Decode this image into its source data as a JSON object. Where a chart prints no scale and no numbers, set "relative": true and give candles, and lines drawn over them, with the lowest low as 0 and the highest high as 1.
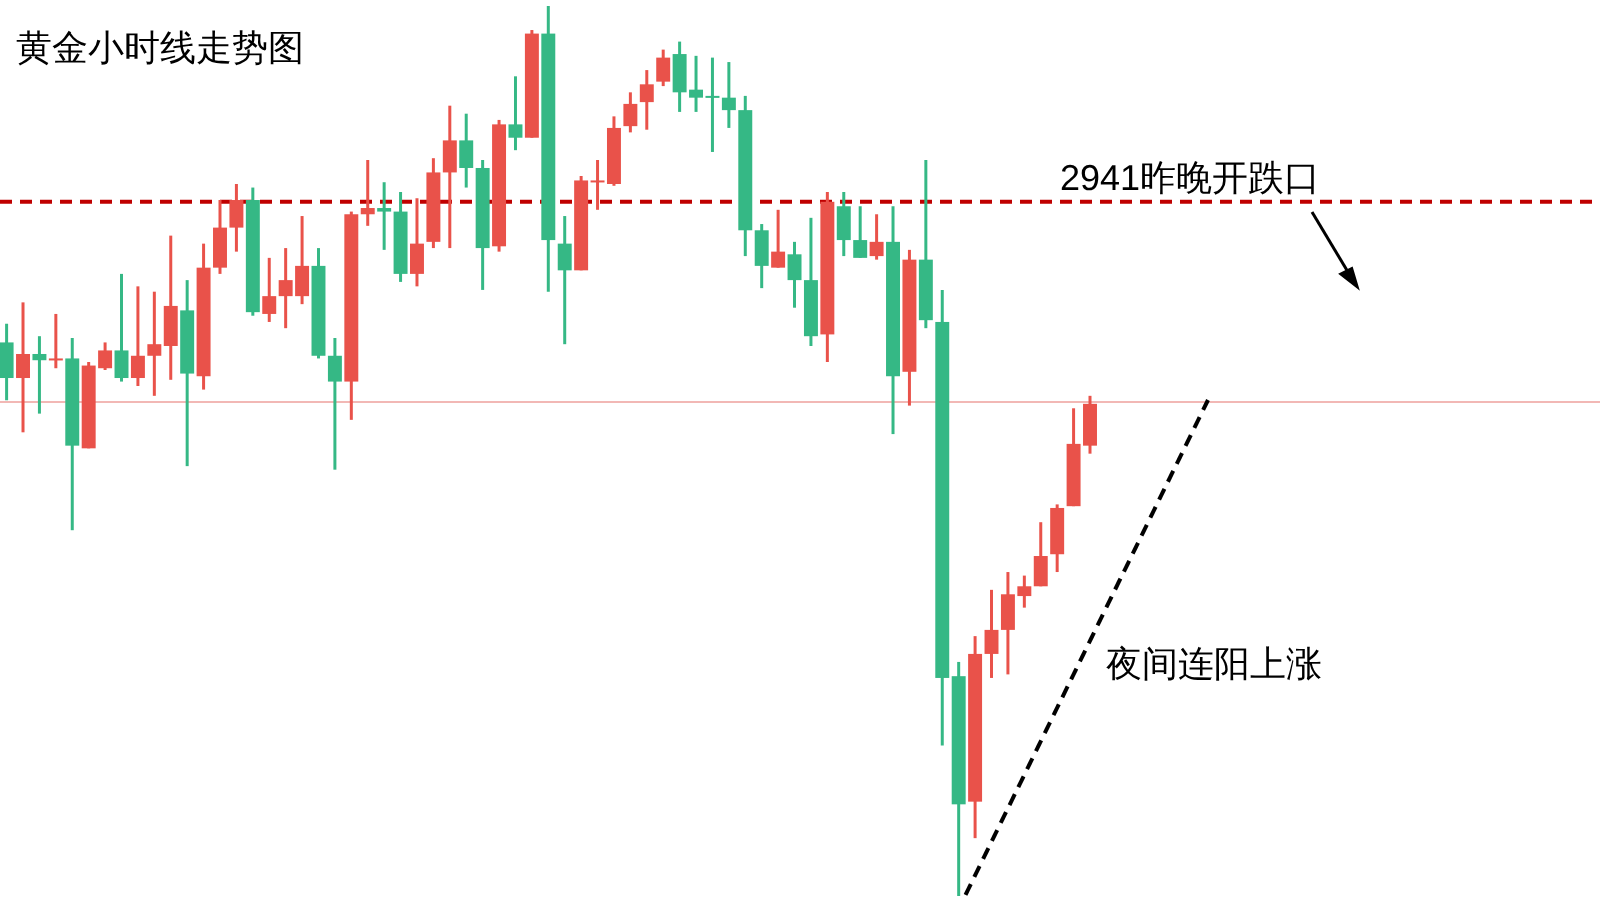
{
  "chart_data": {
    "type": "candlestick",
    "title": "黄金小时线走势图",
    "relative": true,
    "categories": [
      null,
      null,
      null,
      null,
      null,
      null,
      null,
      null,
      null,
      null,
      null,
      null,
      null,
      null,
      null,
      null,
      null,
      null,
      null,
      null,
      null,
      null,
      null,
      null,
      null,
      null,
      null,
      null,
      null,
      null,
      null,
      null,
      null,
      null,
      null,
      null,
      null,
      null,
      null,
      null,
      null,
      null,
      null,
      null,
      null,
      null,
      null,
      null,
      null,
      null,
      null,
      null,
      null,
      null,
      null,
      null,
      null,
      null,
      null,
      null,
      null,
      null,
      null,
      null,
      null,
      null,
      null
    ],
    "ohlc": [
      [
        0.622,
        0.643,
        0.557,
        0.582
      ],
      [
        0.582,
        0.667,
        0.521,
        0.609
      ],
      [
        0.609,
        0.629,
        0.542,
        0.602
      ],
      [
        0.602,
        0.654,
        0.593,
        0.604
      ],
      [
        0.604,
        0.627,
        0.411,
        0.506
      ],
      [
        0.503,
        0.6,
        0.503,
        0.596
      ],
      [
        0.593,
        0.622,
        0.591,
        0.613
      ],
      [
        0.613,
        0.699,
        0.578,
        0.582
      ],
      [
        0.582,
        0.685,
        0.573,
        0.607
      ],
      [
        0.607,
        0.679,
        0.562,
        0.62
      ],
      [
        0.618,
        0.742,
        0.58,
        0.663
      ],
      [
        0.658,
        0.692,
        0.483,
        0.587
      ],
      [
        0.584,
        0.733,
        0.569,
        0.706
      ],
      [
        0.706,
        0.782,
        0.699,
        0.751
      ],
      [
        0.751,
        0.8,
        0.724,
        0.782
      ],
      [
        0.782,
        0.796,
        0.652,
        0.656
      ],
      [
        0.654,
        0.717,
        0.645,
        0.674
      ],
      [
        0.674,
        0.728,
        0.638,
        0.692
      ],
      [
        0.674,
        0.764,
        0.665,
        0.708
      ],
      [
        0.708,
        0.728,
        0.604,
        0.607
      ],
      [
        0.607,
        0.627,
        0.479,
        0.578
      ],
      [
        0.578,
        0.769,
        0.535,
        0.766
      ],
      [
        0.766,
        0.827,
        0.753,
        0.773
      ],
      [
        0.773,
        0.802,
        0.726,
        0.769
      ],
      [
        0.769,
        0.791,
        0.69,
        0.699
      ],
      [
        0.699,
        0.784,
        0.685,
        0.733
      ],
      [
        0.735,
        0.829,
        0.728,
        0.813
      ],
      [
        0.813,
        0.888,
        0.728,
        0.849
      ],
      [
        0.849,
        0.879,
        0.796,
        0.818
      ],
      [
        0.818,
        0.827,
        0.681,
        0.728
      ],
      [
        0.73,
        0.872,
        0.724,
        0.867
      ],
      [
        0.867,
        0.921,
        0.838,
        0.852
      ],
      [
        0.852,
        0.973,
        0.852,
        0.969
      ],
      [
        0.969,
        1,
        0.679,
        0.737
      ],
      [
        0.733,
        0.764,
        0.62,
        0.703
      ],
      [
        0.703,
        0.809,
        0.703,
        0.804
      ],
      [
        0.802,
        0.827,
        0.771,
        0.804
      ],
      [
        0.8,
        0.876,
        0.798,
        0.863
      ],
      [
        0.865,
        0.903,
        0.858,
        0.89
      ],
      [
        0.892,
        0.928,
        0.861,
        0.912
      ],
      [
        0.915,
        0.951,
        0.91,
        0.942
      ],
      [
        0.946,
        0.96,
        0.881,
        0.903
      ],
      [
        0.906,
        0.944,
        0.881,
        0.897
      ],
      [
        0.899,
        0.942,
        0.836,
        0.897
      ],
      [
        0.897,
        0.937,
        0.863,
        0.883
      ],
      [
        0.883,
        0.899,
        0.719,
        0.748
      ],
      [
        0.748,
        0.755,
        0.683,
        0.708
      ],
      [
        0.706,
        0.771,
        0.706,
        0.724
      ],
      [
        0.721,
        0.735,
        0.661,
        0.692
      ],
      [
        0.692,
        0.762,
        0.618,
        0.629
      ],
      [
        0.631,
        0.791,
        0.6,
        0.78
      ],
      [
        0.775,
        0.791,
        0.719,
        0.737
      ],
      [
        0.737,
        0.775,
        0.717,
        0.717
      ],
      [
        0.719,
        0.766,
        0.715,
        0.735
      ],
      [
        0.735,
        0.775,
        0.519,
        0.584
      ],
      [
        0.589,
        0.726,
        0.551,
        0.715
      ],
      [
        0.715,
        0.827,
        0.638,
        0.647
      ],
      [
        0.645,
        0.681,
        0.169,
        0.245
      ],
      [
        0.247,
        0.263,
        0,
        0.103
      ],
      [
        0.106,
        0.292,
        0.065,
        0.272
      ],
      [
        0.272,
        0.344,
        0.245,
        0.299
      ],
      [
        0.299,
        0.364,
        0.249,
        0.339
      ],
      [
        0.337,
        0.36,
        0.324,
        0.348
      ],
      [
        0.348,
        0.42,
        0.348,
        0.382
      ],
      [
        0.384,
        0.44,
        0.364,
        0.436
      ],
      [
        0.438,
        0.548,
        0.438,
        0.508
      ],
      [
        0.506,
        0.562,
        0.497,
        0.553
      ]
    ],
    "colors": [
      "#35b885",
      "#e9524a",
      "#35b885",
      "#e9524a",
      "#35b885",
      "#e9524a",
      "#e9524a",
      "#35b885",
      "#e9524a",
      "#e9524a",
      "#e9524a",
      "#35b885",
      "#e9524a",
      "#e9524a",
      "#e9524a",
      "#35b885",
      "#e9524a",
      "#e9524a",
      "#e9524a",
      "#35b885",
      "#35b885",
      "#e9524a",
      "#e9524a",
      "#35b885",
      "#35b885",
      "#e9524a",
      "#e9524a",
      "#e9524a",
      "#35b885",
      "#35b885",
      "#e9524a",
      "#35b885",
      "#e9524a",
      "#35b885",
      "#35b885",
      "#e9524a",
      "#e9524a",
      "#e9524a",
      "#e9524a",
      "#e9524a",
      "#e9524a",
      "#35b885",
      "#35b885",
      "#35b885",
      "#35b885",
      "#35b885",
      "#35b885",
      "#e9524a",
      "#35b885",
      "#35b885",
      "#e9524a",
      "#35b885",
      "#35b885",
      "#e9524a",
      "#35b885",
      "#e9524a",
      "#35b885",
      "#35b885",
      "#35b885",
      "#e9524a",
      "#e9524a",
      "#e9524a",
      "#e9524a",
      "#e9524a",
      "#e9524a",
      "#e9524a",
      "#e9524a"
    ],
    "ref_lines": [
      {
        "axis": "y",
        "value": 0.78,
        "label": "2941昨晚开跌口",
        "color": "#c00000",
        "line_style": "dashed"
      },
      {
        "axis": "y",
        "value": 0.555,
        "color": "#f2b8b5"
      }
    ],
    "annotations": [
      "夜间连阳上涨"
    ]
  }
}
